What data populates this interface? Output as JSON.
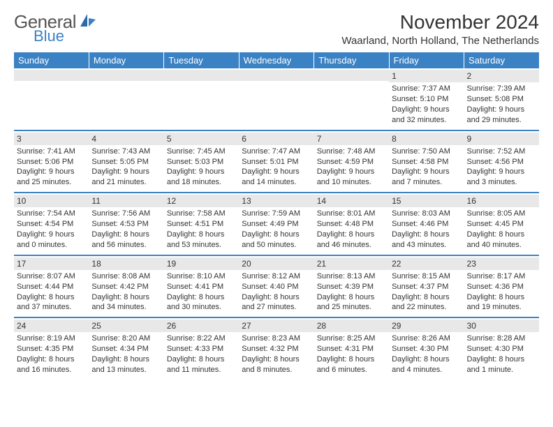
{
  "brand": {
    "main": "General",
    "sub": "Blue"
  },
  "title": "November 2024",
  "location": "Waarland, North Holland, The Netherlands",
  "colors": {
    "accent": "#3b82c4",
    "gray_bar": "#e8e8e8",
    "text": "#333333",
    "bg": "#ffffff"
  },
  "day_headers": [
    "Sunday",
    "Monday",
    "Tuesday",
    "Wednesday",
    "Thursday",
    "Friday",
    "Saturday"
  ],
  "weeks": [
    [
      null,
      null,
      null,
      null,
      null,
      {
        "d": "1",
        "sr": "Sunrise: 7:37 AM",
        "ss": "Sunset: 5:10 PM",
        "dl1": "Daylight: 9 hours",
        "dl2": "and 32 minutes."
      },
      {
        "d": "2",
        "sr": "Sunrise: 7:39 AM",
        "ss": "Sunset: 5:08 PM",
        "dl1": "Daylight: 9 hours",
        "dl2": "and 29 minutes."
      }
    ],
    [
      {
        "d": "3",
        "sr": "Sunrise: 7:41 AM",
        "ss": "Sunset: 5:06 PM",
        "dl1": "Daylight: 9 hours",
        "dl2": "and 25 minutes."
      },
      {
        "d": "4",
        "sr": "Sunrise: 7:43 AM",
        "ss": "Sunset: 5:05 PM",
        "dl1": "Daylight: 9 hours",
        "dl2": "and 21 minutes."
      },
      {
        "d": "5",
        "sr": "Sunrise: 7:45 AM",
        "ss": "Sunset: 5:03 PM",
        "dl1": "Daylight: 9 hours",
        "dl2": "and 18 minutes."
      },
      {
        "d": "6",
        "sr": "Sunrise: 7:47 AM",
        "ss": "Sunset: 5:01 PM",
        "dl1": "Daylight: 9 hours",
        "dl2": "and 14 minutes."
      },
      {
        "d": "7",
        "sr": "Sunrise: 7:48 AM",
        "ss": "Sunset: 4:59 PM",
        "dl1": "Daylight: 9 hours",
        "dl2": "and 10 minutes."
      },
      {
        "d": "8",
        "sr": "Sunrise: 7:50 AM",
        "ss": "Sunset: 4:58 PM",
        "dl1": "Daylight: 9 hours",
        "dl2": "and 7 minutes."
      },
      {
        "d": "9",
        "sr": "Sunrise: 7:52 AM",
        "ss": "Sunset: 4:56 PM",
        "dl1": "Daylight: 9 hours",
        "dl2": "and 3 minutes."
      }
    ],
    [
      {
        "d": "10",
        "sr": "Sunrise: 7:54 AM",
        "ss": "Sunset: 4:54 PM",
        "dl1": "Daylight: 9 hours",
        "dl2": "and 0 minutes."
      },
      {
        "d": "11",
        "sr": "Sunrise: 7:56 AM",
        "ss": "Sunset: 4:53 PM",
        "dl1": "Daylight: 8 hours",
        "dl2": "and 56 minutes."
      },
      {
        "d": "12",
        "sr": "Sunrise: 7:58 AM",
        "ss": "Sunset: 4:51 PM",
        "dl1": "Daylight: 8 hours",
        "dl2": "and 53 minutes."
      },
      {
        "d": "13",
        "sr": "Sunrise: 7:59 AM",
        "ss": "Sunset: 4:49 PM",
        "dl1": "Daylight: 8 hours",
        "dl2": "and 50 minutes."
      },
      {
        "d": "14",
        "sr": "Sunrise: 8:01 AM",
        "ss": "Sunset: 4:48 PM",
        "dl1": "Daylight: 8 hours",
        "dl2": "and 46 minutes."
      },
      {
        "d": "15",
        "sr": "Sunrise: 8:03 AM",
        "ss": "Sunset: 4:46 PM",
        "dl1": "Daylight: 8 hours",
        "dl2": "and 43 minutes."
      },
      {
        "d": "16",
        "sr": "Sunrise: 8:05 AM",
        "ss": "Sunset: 4:45 PM",
        "dl1": "Daylight: 8 hours",
        "dl2": "and 40 minutes."
      }
    ],
    [
      {
        "d": "17",
        "sr": "Sunrise: 8:07 AM",
        "ss": "Sunset: 4:44 PM",
        "dl1": "Daylight: 8 hours",
        "dl2": "and 37 minutes."
      },
      {
        "d": "18",
        "sr": "Sunrise: 8:08 AM",
        "ss": "Sunset: 4:42 PM",
        "dl1": "Daylight: 8 hours",
        "dl2": "and 34 minutes."
      },
      {
        "d": "19",
        "sr": "Sunrise: 8:10 AM",
        "ss": "Sunset: 4:41 PM",
        "dl1": "Daylight: 8 hours",
        "dl2": "and 30 minutes."
      },
      {
        "d": "20",
        "sr": "Sunrise: 8:12 AM",
        "ss": "Sunset: 4:40 PM",
        "dl1": "Daylight: 8 hours",
        "dl2": "and 27 minutes."
      },
      {
        "d": "21",
        "sr": "Sunrise: 8:13 AM",
        "ss": "Sunset: 4:39 PM",
        "dl1": "Daylight: 8 hours",
        "dl2": "and 25 minutes."
      },
      {
        "d": "22",
        "sr": "Sunrise: 8:15 AM",
        "ss": "Sunset: 4:37 PM",
        "dl1": "Daylight: 8 hours",
        "dl2": "and 22 minutes."
      },
      {
        "d": "23",
        "sr": "Sunrise: 8:17 AM",
        "ss": "Sunset: 4:36 PM",
        "dl1": "Daylight: 8 hours",
        "dl2": "and 19 minutes."
      }
    ],
    [
      {
        "d": "24",
        "sr": "Sunrise: 8:19 AM",
        "ss": "Sunset: 4:35 PM",
        "dl1": "Daylight: 8 hours",
        "dl2": "and 16 minutes."
      },
      {
        "d": "25",
        "sr": "Sunrise: 8:20 AM",
        "ss": "Sunset: 4:34 PM",
        "dl1": "Daylight: 8 hours",
        "dl2": "and 13 minutes."
      },
      {
        "d": "26",
        "sr": "Sunrise: 8:22 AM",
        "ss": "Sunset: 4:33 PM",
        "dl1": "Daylight: 8 hours",
        "dl2": "and 11 minutes."
      },
      {
        "d": "27",
        "sr": "Sunrise: 8:23 AM",
        "ss": "Sunset: 4:32 PM",
        "dl1": "Daylight: 8 hours",
        "dl2": "and 8 minutes."
      },
      {
        "d": "28",
        "sr": "Sunrise: 8:25 AM",
        "ss": "Sunset: 4:31 PM",
        "dl1": "Daylight: 8 hours",
        "dl2": "and 6 minutes."
      },
      {
        "d": "29",
        "sr": "Sunrise: 8:26 AM",
        "ss": "Sunset: 4:30 PM",
        "dl1": "Daylight: 8 hours",
        "dl2": "and 4 minutes."
      },
      {
        "d": "30",
        "sr": "Sunrise: 8:28 AM",
        "ss": "Sunset: 4:30 PM",
        "dl1": "Daylight: 8 hours",
        "dl2": "and 1 minute."
      }
    ]
  ]
}
